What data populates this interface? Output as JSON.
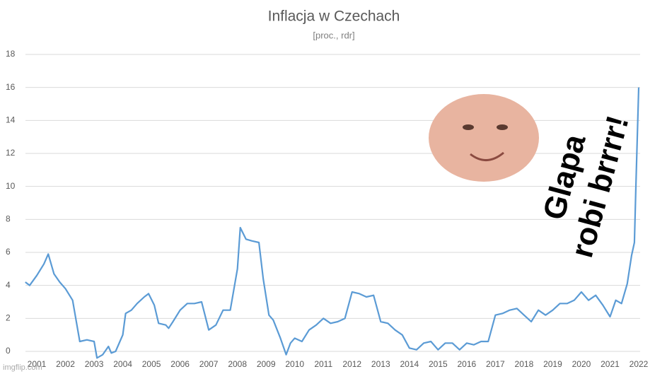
{
  "chart_data": {
    "type": "line",
    "title": "Inflacja w Czechach",
    "subtitle": "[proc., rdr]",
    "x": [
      2000.6,
      2000.75,
      2001.0,
      2001.25,
      2001.4,
      2001.6,
      2001.8,
      2002.0,
      2002.25,
      2002.5,
      2002.75,
      2003.0,
      2003.1,
      2003.3,
      2003.5,
      2003.6,
      2003.75,
      2004.0,
      2004.1,
      2004.3,
      2004.5,
      2004.75,
      2004.9,
      2005.1,
      2005.25,
      2005.5,
      2005.6,
      2005.75,
      2006.0,
      2006.25,
      2006.5,
      2006.75,
      2007.0,
      2007.25,
      2007.5,
      2007.75,
      2008.0,
      2008.1,
      2008.3,
      2008.5,
      2008.75,
      2008.9,
      2009.1,
      2009.25,
      2009.5,
      2009.7,
      2009.85,
      2010.0,
      2010.25,
      2010.5,
      2010.75,
      2011.0,
      2011.25,
      2011.5,
      2011.75,
      2012.0,
      2012.25,
      2012.5,
      2012.75,
      2013.0,
      2013.25,
      2013.5,
      2013.75,
      2014.0,
      2014.25,
      2014.5,
      2014.75,
      2015.0,
      2015.25,
      2015.5,
      2015.75,
      2016.0,
      2016.25,
      2016.5,
      2016.75,
      2017.0,
      2017.25,
      2017.5,
      2017.75,
      2018.0,
      2018.25,
      2018.5,
      2018.75,
      2019.0,
      2019.25,
      2019.5,
      2019.75,
      2020.0,
      2020.25,
      2020.5,
      2020.75,
      2021.0,
      2021.2,
      2021.4,
      2021.6,
      2021.75,
      2021.85,
      2021.9,
      2022.0
    ],
    "series": [
      {
        "color": "#5b9bd5",
        "values": [
          4.2,
          4.0,
          4.6,
          5.3,
          5.9,
          4.7,
          4.2,
          3.8,
          3.1,
          0.6,
          0.7,
          0.6,
          -0.4,
          -0.2,
          0.3,
          -0.1,
          0.0,
          1.0,
          2.3,
          2.5,
          2.9,
          3.3,
          3.5,
          2.8,
          1.7,
          1.6,
          1.4,
          1.8,
          2.5,
          2.9,
          2.9,
          3.0,
          1.3,
          1.6,
          2.5,
          2.5,
          5.0,
          7.5,
          6.8,
          6.7,
          6.6,
          4.4,
          2.2,
          1.9,
          0.8,
          -0.2,
          0.5,
          0.8,
          0.6,
          1.3,
          1.6,
          2.0,
          1.7,
          1.8,
          2.0,
          3.6,
          3.5,
          3.3,
          3.4,
          1.8,
          1.7,
          1.3,
          1.0,
          0.2,
          0.1,
          0.5,
          0.6,
          0.1,
          0.5,
          0.5,
          0.1,
          0.5,
          0.4,
          0.6,
          0.6,
          2.2,
          2.3,
          2.5,
          2.6,
          2.2,
          1.8,
          2.5,
          2.2,
          2.5,
          2.9,
          2.9,
          3.1,
          3.6,
          3.1,
          3.4,
          2.8,
          2.1,
          3.1,
          2.9,
          4.1,
          5.8,
          6.6,
          9.9,
          16.0
        ]
      }
    ],
    "xlim": [
      2000.6,
      2022.0
    ],
    "xticks": [
      2001,
      2002,
      2003,
      2004,
      2005,
      2006,
      2007,
      2008,
      2009,
      2010,
      2011,
      2012,
      2013,
      2014,
      2015,
      2016,
      2017,
      2018,
      2019,
      2020,
      2021,
      2022
    ],
    "ylim": [
      0,
      18
    ],
    "yticks": [
      0,
      2,
      4,
      6,
      8,
      10,
      12,
      14,
      16,
      18
    ],
    "grid": true,
    "annotations": [
      "Glapa",
      "robi brrrr!"
    ],
    "watermark": "imgflip.com"
  }
}
